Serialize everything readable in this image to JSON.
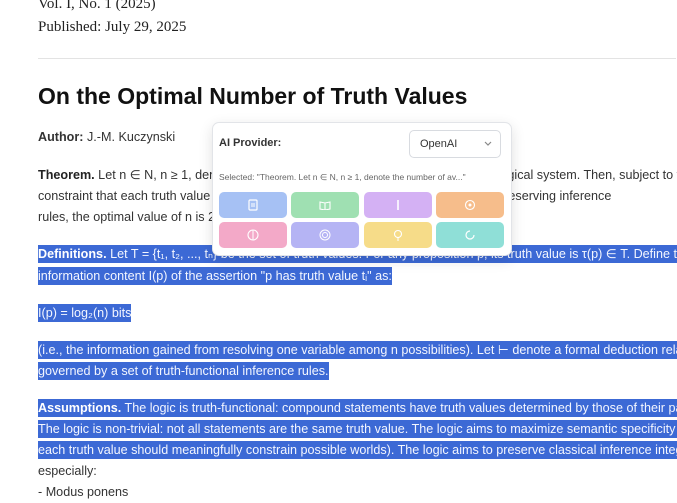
{
  "header": {
    "volume": "Vol. I, No. 1 (2025)",
    "published": "Published: July 29, 2025"
  },
  "article": {
    "title": "On the Optimal Number of Truth Values",
    "author_label": "Author:",
    "author": "J.-M. Kuczynski",
    "paragraphs": [
      {
        "lead": "Theorem.",
        "highlighted": false,
        "lines": [
          " Let n ∈ N, n ≥ 1, denote the number of truth values in a truth-functional logical system. Then, subject to the",
          "constraint that each truth value must carry nonzero information under sound, truth-preserving inference",
          "rules, the optimal value of n is 2."
        ]
      },
      {
        "lead": "Definitions.",
        "highlighted": true,
        "lines": [
          " Let T = {t₁, t₂, ..., tₙ} be the set of truth values. For any proposition p, its truth value is τ(p) ∈ T. Define the",
          "information content I(p) of the assertion \"p has truth value tᵢ\" as:"
        ]
      },
      {
        "highlighted": true,
        "lines": [
          "I(p) = log₂(n) bits"
        ]
      },
      {
        "highlighted": true,
        "lines": [
          "(i.e., the information gained from resolving one variable among n possibilities). Let ⊢ denote a formal deduction relation",
          "governed by a set of truth-functional inference rules."
        ]
      },
      {
        "lead": "Assumptions.",
        "highlighted": true,
        "lines": [
          " The logic is truth-functional: compound statements have truth values determined by those of their parts.",
          "The logic is non-trivial: not all statements are the same truth value. The logic aims to maximize semantic specificity (i.e.,",
          "each truth value should meaningfully constrain possible worlds). The logic aims to preserve classical inference integrity,"
        ]
      },
      {
        "highlighted": false,
        "lines": [
          "especially:",
          "- Modus ponens"
        ]
      }
    ]
  },
  "popup": {
    "label": "AI Provider:",
    "provider": "OpenAI",
    "selected": "Selected: \"Theorem. Let n ∈ N, n ≥ 1, denote the number of av...\""
  }
}
